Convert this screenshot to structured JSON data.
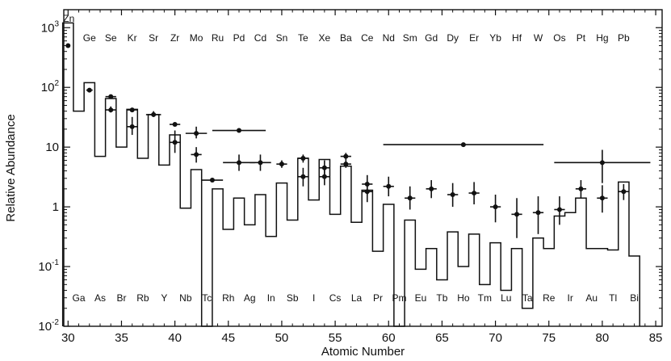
{
  "chart_data": {
    "type": "line",
    "title": "",
    "xlabel": "Atomic Number",
    "ylabel": "Relative Abundance",
    "xlim": [
      29.6,
      85.6
    ],
    "ylim": [
      0.01,
      2000
    ],
    "y_scale": "log",
    "grid": false,
    "x_ticks": [
      30,
      35,
      40,
      45,
      50,
      55,
      60,
      65,
      70,
      75,
      80,
      85
    ],
    "y_ticks": [
      {
        "value": 0.01,
        "base": "10",
        "exp": "-2"
      },
      {
        "value": 0.1,
        "base": "10",
        "exp": "-1"
      },
      {
        "value": 1,
        "base": "1",
        "exp": ""
      },
      {
        "value": 10,
        "base": "10",
        "exp": ""
      },
      {
        "value": 100,
        "base": "10",
        "exp": "2"
      },
      {
        "value": 1000,
        "base": "10",
        "exp": "3"
      }
    ],
    "even_elements": [
      {
        "z": 30,
        "symbol": "Zn"
      },
      {
        "z": 32,
        "symbol": "Ge"
      },
      {
        "z": 34,
        "symbol": "Se"
      },
      {
        "z": 36,
        "symbol": "Kr"
      },
      {
        "z": 38,
        "symbol": "Sr"
      },
      {
        "z": 40,
        "symbol": "Zr"
      },
      {
        "z": 42,
        "symbol": "Mo"
      },
      {
        "z": 44,
        "symbol": "Ru"
      },
      {
        "z": 46,
        "symbol": "Pd"
      },
      {
        "z": 48,
        "symbol": "Cd"
      },
      {
        "z": 50,
        "symbol": "Sn"
      },
      {
        "z": 52,
        "symbol": "Te"
      },
      {
        "z": 54,
        "symbol": "Xe"
      },
      {
        "z": 56,
        "symbol": "Ba"
      },
      {
        "z": 58,
        "symbol": "Ce"
      },
      {
        "z": 60,
        "symbol": "Nd"
      },
      {
        "z": 62,
        "symbol": "Sm"
      },
      {
        "z": 64,
        "symbol": "Gd"
      },
      {
        "z": 66,
        "symbol": "Dy"
      },
      {
        "z": 68,
        "symbol": "Er"
      },
      {
        "z": 70,
        "symbol": "Yb"
      },
      {
        "z": 72,
        "symbol": "Hf"
      },
      {
        "z": 74,
        "symbol": "W"
      },
      {
        "z": 76,
        "symbol": "Os"
      },
      {
        "z": 78,
        "symbol": "Pt"
      },
      {
        "z": 80,
        "symbol": "Hg"
      },
      {
        "z": 82,
        "symbol": "Pb"
      }
    ],
    "odd_elements": [
      {
        "z": 31,
        "symbol": "Ga"
      },
      {
        "z": 33,
        "symbol": "As"
      },
      {
        "z": 35,
        "symbol": "Br"
      },
      {
        "z": 37,
        "symbol": "Rb"
      },
      {
        "z": 39,
        "symbol": "Y"
      },
      {
        "z": 41,
        "symbol": "Nb"
      },
      {
        "z": 43,
        "symbol": "Tc"
      },
      {
        "z": 45,
        "symbol": "Rh"
      },
      {
        "z": 47,
        "symbol": "Ag"
      },
      {
        "z": 49,
        "symbol": "In"
      },
      {
        "z": 51,
        "symbol": "Sb"
      },
      {
        "z": 53,
        "symbol": "I"
      },
      {
        "z": 55,
        "symbol": "Cs"
      },
      {
        "z": 57,
        "symbol": "La"
      },
      {
        "z": 59,
        "symbol": "Pr"
      },
      {
        "z": 61,
        "symbol": "Pm"
      },
      {
        "z": 63,
        "symbol": "Eu"
      },
      {
        "z": 65,
        "symbol": "Tb"
      },
      {
        "z": 67,
        "symbol": "Ho"
      },
      {
        "z": 69,
        "symbol": "Tm"
      },
      {
        "z": 71,
        "symbol": "Lu"
      },
      {
        "z": 73,
        "symbol": "Ta"
      },
      {
        "z": 75,
        "symbol": "Re"
      },
      {
        "z": 77,
        "symbol": "Ir"
      },
      {
        "z": 79,
        "symbol": "Au"
      },
      {
        "z": 81,
        "symbol": "Tl"
      },
      {
        "z": 83,
        "symbol": "Bi"
      }
    ],
    "series": [
      {
        "type": "histogram",
        "z_start": 30,
        "values": [
          1200,
          40,
          120,
          7,
          65,
          10,
          43,
          6.5,
          35,
          5,
          16,
          0.95,
          4.2,
          0.01,
          2.0,
          0.42,
          1.4,
          0.5,
          1.6,
          0.32,
          2.5,
          0.6,
          6.5,
          1.3,
          6.2,
          0.75,
          4.8,
          0.55,
          1.9,
          0.18,
          1.1,
          0.01,
          0.6,
          0.09,
          0.2,
          0.06,
          0.38,
          0.1,
          0.35,
          0.05,
          0.25,
          0.04,
          0.2,
          0.02,
          0.3,
          0.2,
          0.7,
          0.8,
          1.4,
          0.2,
          0.2,
          0.19,
          2.6,
          0.15
        ]
      },
      {
        "type": "errorbars",
        "points": [
          {
            "x": 30,
            "y": 500,
            "x_lo": 30,
            "x_hi": 30,
            "y_lo": 500,
            "y_hi": 500
          },
          {
            "x": 32,
            "y": 90,
            "x_lo": 31.7,
            "x_hi": 32.3,
            "y_lo": 90,
            "y_hi": 90
          },
          {
            "x": 34,
            "y": 70,
            "x_lo": 33.5,
            "x_hi": 34.5,
            "y_lo": 70,
            "y_hi": 70
          },
          {
            "x": 34,
            "y": 42,
            "x_lo": 33.5,
            "x_hi": 34.5,
            "y_lo": 38,
            "y_hi": 48
          },
          {
            "x": 36,
            "y": 42,
            "x_lo": 35.5,
            "x_hi": 36.5,
            "y_lo": 42,
            "y_hi": 42
          },
          {
            "x": 36,
            "y": 22,
            "x_lo": 35.5,
            "x_hi": 36.5,
            "y_lo": 16,
            "y_hi": 32
          },
          {
            "x": 38,
            "y": 35,
            "x_lo": 37.3,
            "x_hi": 38.7,
            "y_lo": 32,
            "y_hi": 40
          },
          {
            "x": 40,
            "y": 24,
            "x_lo": 39.5,
            "x_hi": 40.5,
            "y_lo": 24,
            "y_hi": 24
          },
          {
            "x": 40,
            "y": 12,
            "x_lo": 39.5,
            "x_hi": 40.5,
            "y_lo": 8,
            "y_hi": 19
          },
          {
            "x": 42,
            "y": 17,
            "x_lo": 41,
            "x_hi": 43,
            "y_lo": 14,
            "y_hi": 22
          },
          {
            "x": 42,
            "y": 7.5,
            "x_lo": 41.5,
            "x_hi": 42.5,
            "y_lo": 5.5,
            "y_hi": 10
          },
          {
            "x": 43.5,
            "y": 2.8,
            "x_lo": 42.5,
            "x_hi": 44.5,
            "y_lo": 2.8,
            "y_hi": 2.8
          },
          {
            "x": 46,
            "y": 19,
            "x_lo": 43.5,
            "x_hi": 48.5,
            "y_lo": 19,
            "y_hi": 19
          },
          {
            "x": 46,
            "y": 5.5,
            "x_lo": 44.5,
            "x_hi": 47.5,
            "y_lo": 4,
            "y_hi": 7.5
          },
          {
            "x": 48,
            "y": 5.5,
            "x_lo": 47,
            "x_hi": 49,
            "y_lo": 4,
            "y_hi": 7.5
          },
          {
            "x": 50,
            "y": 5.2,
            "x_lo": 49.5,
            "x_hi": 50.5,
            "y_lo": 4.5,
            "y_hi": 6
          },
          {
            "x": 52,
            "y": 6.5,
            "x_lo": 51.5,
            "x_hi": 52.5,
            "y_lo": 5.5,
            "y_hi": 7.5
          },
          {
            "x": 52,
            "y": 3.2,
            "x_lo": 51.5,
            "x_hi": 52.5,
            "y_lo": 2.2,
            "y_hi": 4.5
          },
          {
            "x": 54,
            "y": 4.5,
            "x_lo": 53.5,
            "x_hi": 54.5,
            "y_lo": 3.5,
            "y_hi": 6
          },
          {
            "x": 54,
            "y": 3.2,
            "x_lo": 53.5,
            "x_hi": 54.5,
            "y_lo": 2.3,
            "y_hi": 4.5
          },
          {
            "x": 56,
            "y": 7,
            "x_lo": 55.5,
            "x_hi": 56.5,
            "y_lo": 6,
            "y_hi": 8
          },
          {
            "x": 56,
            "y": 5.2,
            "x_lo": 55.5,
            "x_hi": 56.5,
            "y_lo": 4.5,
            "y_hi": 6
          },
          {
            "x": 58,
            "y": 2.4,
            "x_lo": 57.5,
            "x_hi": 58.5,
            "y_lo": 1.6,
            "y_hi": 3.4
          },
          {
            "x": 58,
            "y": 1.8,
            "x_lo": 57.5,
            "x_hi": 58.5,
            "y_lo": 1.2,
            "y_hi": 2.6
          },
          {
            "x": 60,
            "y": 2.2,
            "x_lo": 59.5,
            "x_hi": 60.5,
            "y_lo": 1.5,
            "y_hi": 3.2
          },
          {
            "x": 62,
            "y": 1.4,
            "x_lo": 61.5,
            "x_hi": 62.5,
            "y_lo": 0.9,
            "y_hi": 2.2
          },
          {
            "x": 64,
            "y": 2,
            "x_lo": 63.5,
            "x_hi": 64.5,
            "y_lo": 1.4,
            "y_hi": 2.8
          },
          {
            "x": 66,
            "y": 1.6,
            "x_lo": 65.5,
            "x_hi": 66.5,
            "y_lo": 1,
            "y_hi": 2.5
          },
          {
            "x": 67,
            "y": 11,
            "x_lo": 59.5,
            "x_hi": 74.5,
            "y_lo": 11,
            "y_hi": 11
          },
          {
            "x": 68,
            "y": 1.7,
            "x_lo": 67.5,
            "x_hi": 68.5,
            "y_lo": 1.1,
            "y_hi": 2.6
          },
          {
            "x": 70,
            "y": 1,
            "x_lo": 69.5,
            "x_hi": 70.5,
            "y_lo": 0.55,
            "y_hi": 1.6
          },
          {
            "x": 72,
            "y": 0.75,
            "x_lo": 71.5,
            "x_hi": 72.5,
            "y_lo": 0.3,
            "y_hi": 1.4
          },
          {
            "x": 74,
            "y": 0.8,
            "x_lo": 73.5,
            "x_hi": 74.5,
            "y_lo": 0.35,
            "y_hi": 1.5
          },
          {
            "x": 76,
            "y": 0.9,
            "x_lo": 75.5,
            "x_hi": 76.5,
            "y_lo": 0.5,
            "y_hi": 1.5
          },
          {
            "x": 78,
            "y": 2,
            "x_lo": 77.5,
            "x_hi": 78.5,
            "y_lo": 1.4,
            "y_hi": 2.8
          },
          {
            "x": 80,
            "y": 5.5,
            "x_lo": 75.5,
            "x_hi": 84.5,
            "y_lo": 2.5,
            "y_hi": 9
          },
          {
            "x": 80,
            "y": 1.4,
            "x_lo": 79.5,
            "x_hi": 80.5,
            "y_lo": 0.8,
            "y_hi": 2.3
          },
          {
            "x": 82,
            "y": 1.8,
            "x_lo": 81.5,
            "x_hi": 82.5,
            "y_lo": 1.3,
            "y_hi": 2.4
          }
        ]
      }
    ]
  }
}
